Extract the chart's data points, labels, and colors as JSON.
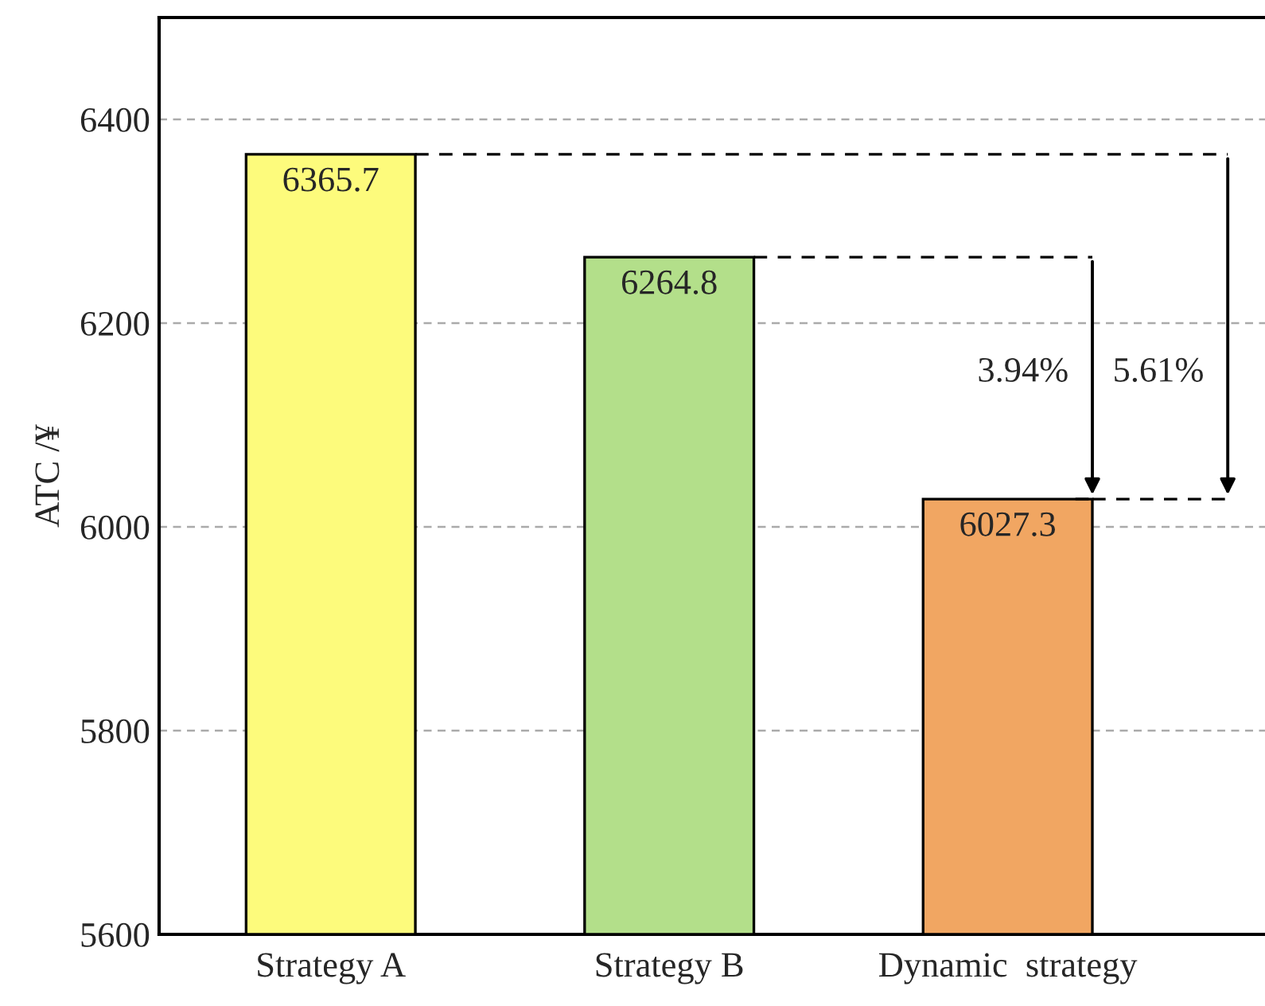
{
  "chart_data": {
    "type": "bar",
    "ylabel": "ATC /¥",
    "categories": [
      "Strategy A",
      "Strategy B",
      "Dynamic  strategy"
    ],
    "values": [
      6365.7,
      6264.8,
      6027.3
    ],
    "colors": [
      "#fdfb7c",
      "#b3df8a",
      "#f1a662"
    ],
    "data_labels": true,
    "ylim": [
      5600,
      6500
    ],
    "yticks": [
      5600,
      5800,
      6000,
      6200,
      6400
    ],
    "grid": "y",
    "annotations": [
      "3.94%",
      "5.61%"
    ]
  }
}
